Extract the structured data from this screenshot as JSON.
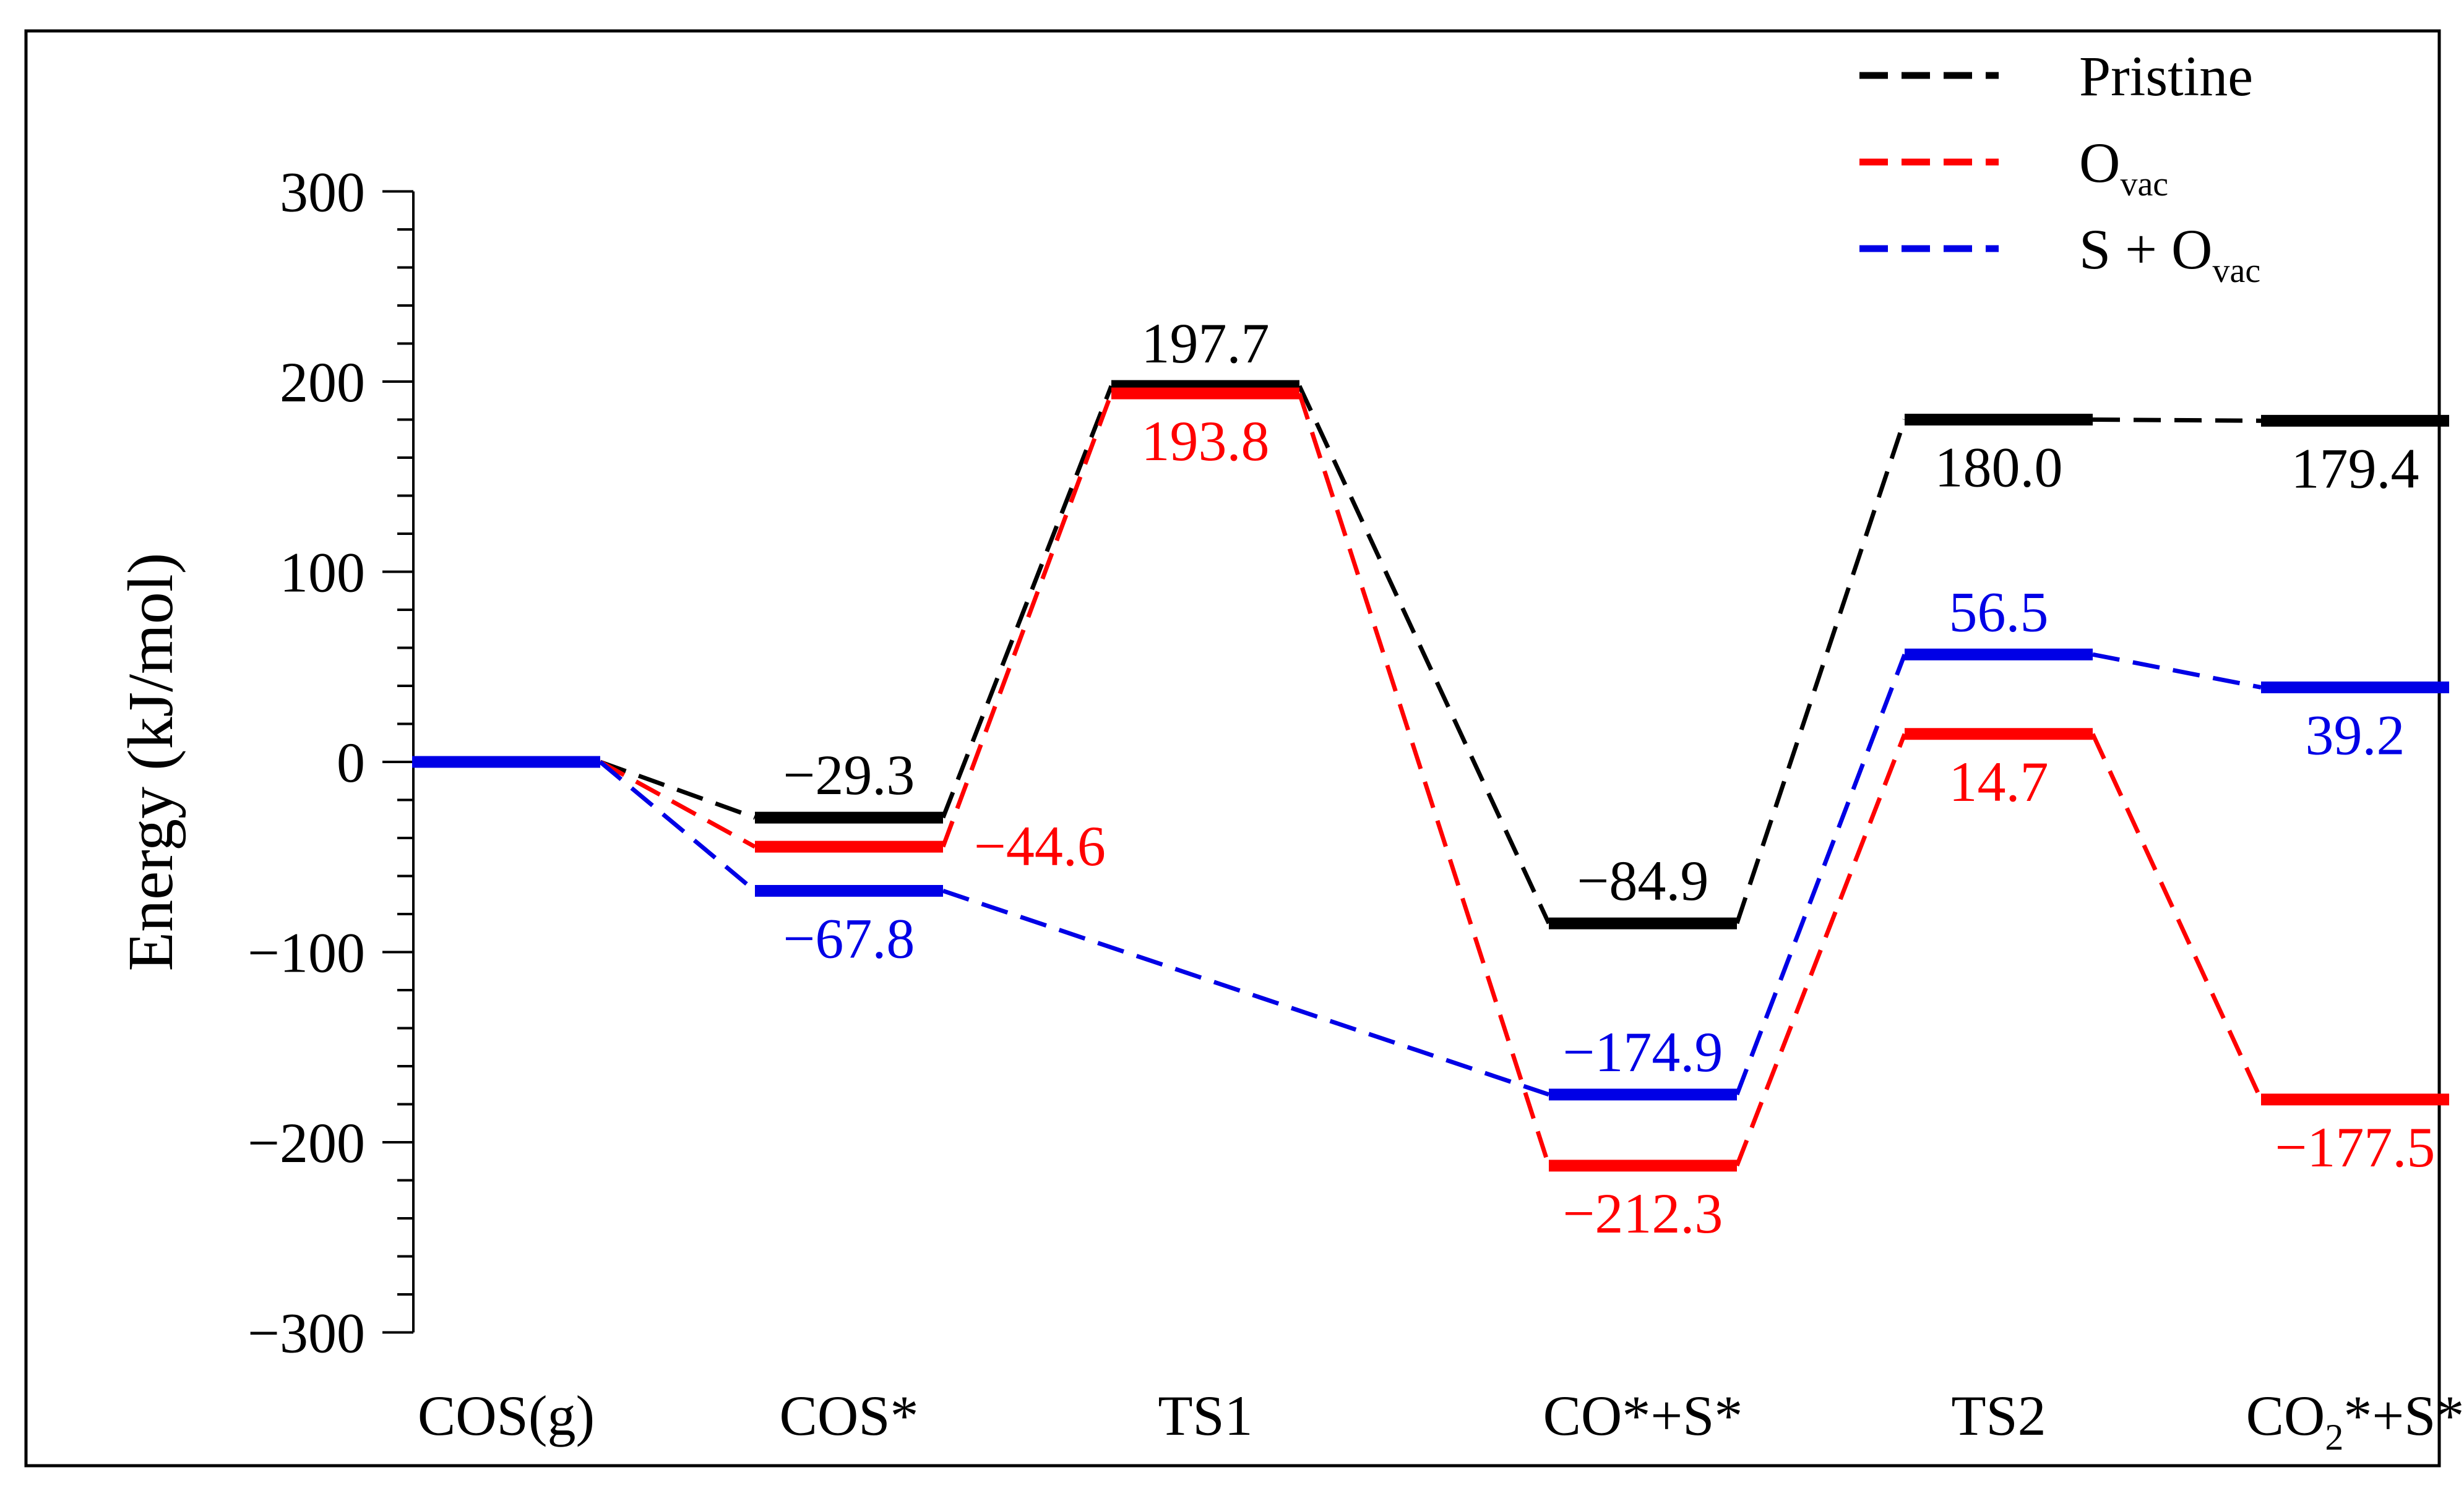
{
  "chart_data": {
    "type": "line",
    "title": "",
    "xlabel": "",
    "ylabel": "Energy (kJ/mol)",
    "ylim": [
      -300,
      300
    ],
    "yticks": [
      -300,
      -200,
      -100,
      0,
      100,
      200,
      300
    ],
    "ytick_labels": [
      "−300",
      "−200",
      "−100",
      "0",
      "100",
      "200",
      "300"
    ],
    "categories": [
      {
        "label": "COS(g)"
      },
      {
        "label": "COS*"
      },
      {
        "label": "TS1"
      },
      {
        "label": "CO*+S*"
      },
      {
        "label": "TS2"
      },
      {
        "label": "CO",
        "sub": "2",
        "rest": "*+S*"
      }
    ],
    "series": [
      {
        "name": "Pristine",
        "legend_main": "Pristine",
        "legend_sub": "",
        "legend_rest": "",
        "color": "#000000",
        "values": [
          0,
          -29.3,
          197.7,
          -84.9,
          180.0,
          179.4
        ],
        "labels": [
          "",
          "−29.3",
          "197.7",
          "−84.9",
          "180.0",
          "179.4"
        ],
        "label_pos": [
          "",
          "above",
          "above",
          "above",
          "below",
          "below"
        ]
      },
      {
        "name": "Ovac",
        "legend_main": "O",
        "legend_sub": "vac",
        "legend_rest": "",
        "color": "#ff0000",
        "values": [
          0,
          -44.6,
          193.8,
          -212.3,
          14.7,
          -177.5
        ],
        "labels": [
          "",
          "−44.6",
          "193.8",
          "−212.3",
          "14.7",
          "−177.5"
        ],
        "label_pos": [
          "",
          "right",
          "below",
          "below",
          "below",
          "below"
        ]
      },
      {
        "name": "S + Ovac",
        "legend_main": "S + O",
        "legend_sub": "vac",
        "legend_rest": "",
        "color": "#0000e6",
        "values": [
          0,
          -67.8,
          null,
          -174.9,
          56.5,
          39.2
        ],
        "labels": [
          "",
          "−67.8",
          "",
          "−174.9",
          "56.5",
          "39.2"
        ],
        "label_pos": [
          "",
          "below",
          "",
          "above",
          "above",
          "below"
        ]
      }
    ],
    "legend_position": "top-right"
  }
}
